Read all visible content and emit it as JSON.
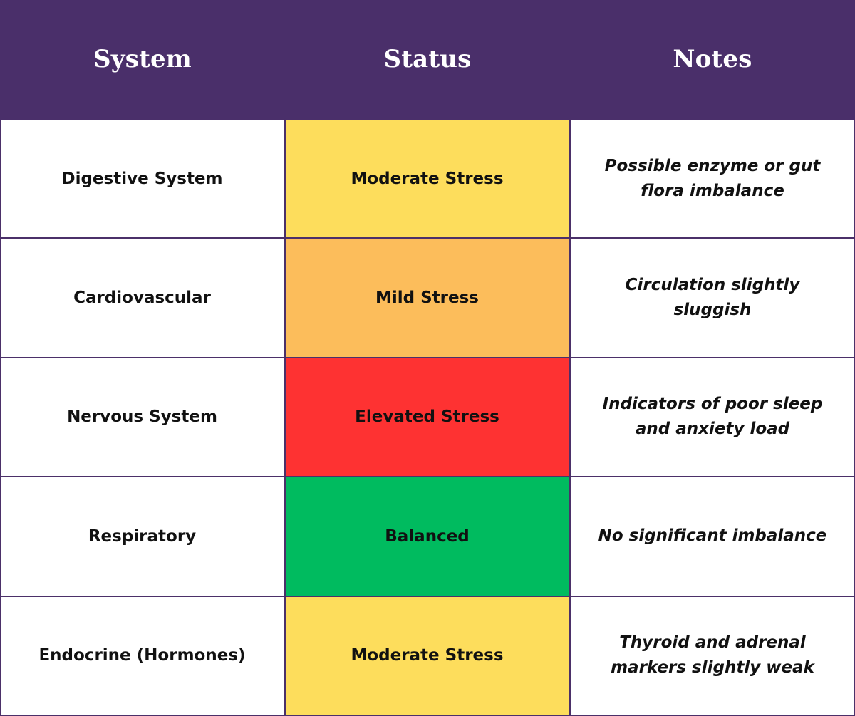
{
  "colors": {
    "header_bg": "#4a2f6a",
    "border": "#4b3069",
    "moderate": "#fddd5c",
    "mild": "#fcbd5b",
    "elevated": "#fe3232",
    "balanced": "#00bb5f",
    "white": "#ffffff"
  },
  "header": {
    "system": "System",
    "status": "Status",
    "notes": "Notes"
  },
  "rows": [
    {
      "system": "Digestive System",
      "status": "Moderate Stress",
      "status_color": "#fddd5c",
      "notes": "Possible enzyme or gut flora imbalance"
    },
    {
      "system": "Cardiovascular",
      "status": "Mild Stress",
      "status_color": "#fcbd5b",
      "notes": "Circulation slightly sluggish"
    },
    {
      "system": "Nervous System",
      "status": "Elevated Stress",
      "status_color": "#fe3232",
      "notes": "Indicators of poor sleep and anxiety load"
    },
    {
      "system": "Respiratory",
      "status": "Balanced",
      "status_color": "#00bb5f",
      "notes": "No significant imbalance"
    },
    {
      "system": "Endocrine (Hormones)",
      "status": "Moderate Stress",
      "status_color": "#fddd5c",
      "notes": "Thyroid and adrenal markers slightly weak"
    }
  ]
}
